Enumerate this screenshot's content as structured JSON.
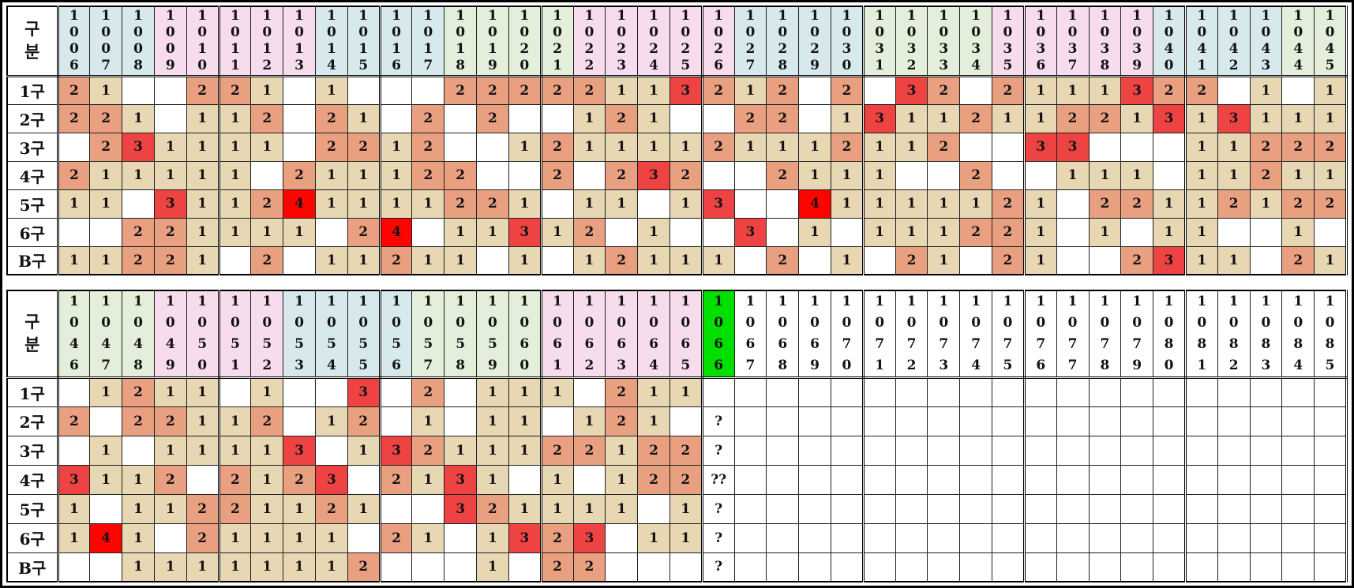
{
  "corner_label": "구분",
  "row_labels": [
    "1구",
    "2구",
    "3구",
    "4구",
    "5구",
    "6구",
    "B구"
  ],
  "colors": {
    "header_blue": "#d8e9ee",
    "header_pink": "#f6dcec",
    "header_green": "#e3efda",
    "header_highlight_green": "#00df00",
    "header_white": "#ffffff",
    "value_1_bg": "#e7d7b3",
    "value_2_bg": "#e9a080",
    "value_3_bg": "#ee4343",
    "value_4_bg": "#fe0400",
    "grid_line": "#000000"
  },
  "tables": [
    {
      "name": "rounds-1006-1045",
      "columns": [
        {
          "id": "1006",
          "color": "blue"
        },
        {
          "id": "1007",
          "color": "blue"
        },
        {
          "id": "1008",
          "color": "blue"
        },
        {
          "id": "1009",
          "color": "pink"
        },
        {
          "id": "1010",
          "color": "pink"
        },
        {
          "id": "1011",
          "color": "pink"
        },
        {
          "id": "1012",
          "color": "pink"
        },
        {
          "id": "1013",
          "color": "pink"
        },
        {
          "id": "1014",
          "color": "blue"
        },
        {
          "id": "1015",
          "color": "blue"
        },
        {
          "id": "1016",
          "color": "blue"
        },
        {
          "id": "1017",
          "color": "blue"
        },
        {
          "id": "1018",
          "color": "green"
        },
        {
          "id": "1019",
          "color": "green"
        },
        {
          "id": "1020",
          "color": "green"
        },
        {
          "id": "1021",
          "color": "green"
        },
        {
          "id": "1022",
          "color": "pink"
        },
        {
          "id": "1023",
          "color": "pink"
        },
        {
          "id": "1024",
          "color": "pink"
        },
        {
          "id": "1025",
          "color": "pink"
        },
        {
          "id": "1026",
          "color": "pink"
        },
        {
          "id": "1027",
          "color": "blue"
        },
        {
          "id": "1028",
          "color": "blue"
        },
        {
          "id": "1029",
          "color": "blue"
        },
        {
          "id": "1030",
          "color": "blue"
        },
        {
          "id": "1031",
          "color": "green"
        },
        {
          "id": "1032",
          "color": "green"
        },
        {
          "id": "1033",
          "color": "green"
        },
        {
          "id": "1034",
          "color": "green"
        },
        {
          "id": "1035",
          "color": "pink"
        },
        {
          "id": "1036",
          "color": "pink"
        },
        {
          "id": "1037",
          "color": "pink"
        },
        {
          "id": "1038",
          "color": "pink"
        },
        {
          "id": "1039",
          "color": "pink"
        },
        {
          "id": "1040",
          "color": "blue"
        },
        {
          "id": "1041",
          "color": "blue"
        },
        {
          "id": "1042",
          "color": "blue"
        },
        {
          "id": "1043",
          "color": "blue"
        },
        {
          "id": "1044",
          "color": "green"
        },
        {
          "id": "1045",
          "color": "green"
        }
      ],
      "rows": [
        {
          "label": "1구",
          "cells": [
            "2",
            "1",
            "",
            "",
            "2",
            "2",
            "1",
            "",
            "1",
            "",
            "",
            "",
            "2",
            "2",
            "2",
            "2",
            "2",
            "1",
            "1",
            "3",
            "2",
            "1",
            "2",
            "",
            "2",
            "",
            "3",
            "2",
            "",
            "2",
            "1",
            "1",
            "1",
            "3",
            "2",
            "2",
            "",
            "1",
            "",
            "1"
          ]
        },
        {
          "label": "2구",
          "cells": [
            "2",
            "2",
            "1",
            "",
            "1",
            "1",
            "2",
            "",
            "2",
            "1",
            "",
            "2",
            "",
            "2",
            "",
            "",
            "1",
            "2",
            "1",
            "",
            "",
            "2",
            "2",
            "",
            "1",
            "3",
            "1",
            "1",
            "2",
            "1",
            "1",
            "2",
            "2",
            "1",
            "3",
            "1",
            "3",
            "1",
            "1",
            "1"
          ]
        },
        {
          "label": "3구",
          "cells": [
            "",
            "2",
            "3",
            "1",
            "1",
            "1",
            "1",
            "",
            "2",
            "2",
            "1",
            "2",
            "",
            "",
            "1",
            "2",
            "1",
            "1",
            "1",
            "1",
            "2",
            "1",
            "1",
            "1",
            "2",
            "1",
            "1",
            "2",
            "",
            "",
            "3",
            "3",
            "",
            "",
            "",
            "1",
            "1",
            "2",
            "2",
            "2"
          ]
        },
        {
          "label": "4구",
          "cells": [
            "2",
            "1",
            "1",
            "1",
            "1",
            "1",
            "",
            "2",
            "1",
            "1",
            "1",
            "2",
            "2",
            "",
            "",
            "2",
            "",
            "2",
            "3",
            "2",
            "",
            "",
            "2",
            "1",
            "1",
            "1",
            "",
            "",
            "2",
            "",
            "",
            "1",
            "1",
            "1",
            "",
            "1",
            "1",
            "2",
            "1",
            "1"
          ]
        },
        {
          "label": "5구",
          "cells": [
            "1",
            "1",
            "",
            "3",
            "1",
            "1",
            "2",
            "4",
            "1",
            "1",
            "1",
            "1",
            "2",
            "2",
            "1",
            "",
            "1",
            "1",
            "",
            "1",
            "3",
            "",
            "",
            "4",
            "1",
            "1",
            "1",
            "1",
            "1",
            "2",
            "1",
            "",
            "2",
            "2",
            "1",
            "1",
            "2",
            "1",
            "2",
            "2"
          ]
        },
        {
          "label": "6구",
          "cells": [
            "",
            "",
            "2",
            "2",
            "1",
            "1",
            "1",
            "1",
            "",
            "2",
            "4",
            "",
            "1",
            "1",
            "3",
            "1",
            "2",
            "",
            "1",
            "",
            "",
            "3",
            "",
            "1",
            "",
            "1",
            "1",
            "1",
            "2",
            "2",
            "1",
            "",
            "1",
            "",
            "1",
            "1",
            "",
            "",
            "1",
            ""
          ]
        },
        {
          "label": "B구",
          "cells": [
            "1",
            "1",
            "2",
            "2",
            "1",
            "",
            "2",
            "",
            "1",
            "1",
            "2",
            "1",
            "1",
            "",
            "1",
            "",
            "1",
            "2",
            "1",
            "1",
            "1",
            "",
            "2",
            "",
            "1",
            "",
            "2",
            "1",
            "",
            "2",
            "1",
            "",
            "",
            "2",
            "3",
            "1",
            "1",
            "",
            "2",
            "1"
          ]
        }
      ]
    },
    {
      "name": "rounds-1046-1085",
      "columns": [
        {
          "id": "1046",
          "color": "green"
        },
        {
          "id": "1047",
          "color": "green"
        },
        {
          "id": "1048",
          "color": "green"
        },
        {
          "id": "1049",
          "color": "pink"
        },
        {
          "id": "1050",
          "color": "pink"
        },
        {
          "id": "1051",
          "color": "pink"
        },
        {
          "id": "1052",
          "color": "pink"
        },
        {
          "id": "1053",
          "color": "blue"
        },
        {
          "id": "1054",
          "color": "blue"
        },
        {
          "id": "1055",
          "color": "blue"
        },
        {
          "id": "1056",
          "color": "blue"
        },
        {
          "id": "1057",
          "color": "green"
        },
        {
          "id": "1058",
          "color": "green"
        },
        {
          "id": "1059",
          "color": "green"
        },
        {
          "id": "1060",
          "color": "green"
        },
        {
          "id": "1061",
          "color": "pink"
        },
        {
          "id": "1062",
          "color": "pink"
        },
        {
          "id": "1063",
          "color": "pink"
        },
        {
          "id": "1064",
          "color": "pink"
        },
        {
          "id": "1065",
          "color": "pink"
        },
        {
          "id": "1066",
          "color": "hl"
        },
        {
          "id": "1067",
          "color": "white"
        },
        {
          "id": "1068",
          "color": "white"
        },
        {
          "id": "1069",
          "color": "white"
        },
        {
          "id": "1070",
          "color": "white"
        },
        {
          "id": "1071",
          "color": "white"
        },
        {
          "id": "1072",
          "color": "white"
        },
        {
          "id": "1073",
          "color": "white"
        },
        {
          "id": "1074",
          "color": "white"
        },
        {
          "id": "1075",
          "color": "white"
        },
        {
          "id": "1076",
          "color": "white"
        },
        {
          "id": "1077",
          "color": "white"
        },
        {
          "id": "1078",
          "color": "white"
        },
        {
          "id": "1079",
          "color": "white"
        },
        {
          "id": "1080",
          "color": "white"
        },
        {
          "id": "1081",
          "color": "white"
        },
        {
          "id": "1082",
          "color": "white"
        },
        {
          "id": "1083",
          "color": "white"
        },
        {
          "id": "1084",
          "color": "white"
        },
        {
          "id": "1085",
          "color": "white"
        }
      ],
      "rows": [
        {
          "label": "1구",
          "cells": [
            "",
            "1",
            "2",
            "1",
            "1",
            "",
            "1",
            "",
            "",
            "3",
            "",
            "2",
            "",
            "1",
            "1",
            "1",
            "",
            "2",
            "1",
            "1",
            "",
            "",
            "",
            "",
            "",
            "",
            "",
            "",
            "",
            "",
            "",
            "",
            "",
            "",
            "",
            "",
            "",
            "",
            "",
            ""
          ]
        },
        {
          "label": "2구",
          "cells": [
            "2",
            "",
            "2",
            "2",
            "1",
            "1",
            "2",
            "",
            "1",
            "2",
            "",
            "1",
            "",
            "1",
            "1",
            "",
            "1",
            "2",
            "1",
            "",
            "?",
            "",
            "",
            "",
            "",
            "",
            "",
            "",
            "",
            "",
            "",
            "",
            "",
            "",
            "",
            "",
            "",
            "",
            "",
            ""
          ]
        },
        {
          "label": "3구",
          "cells": [
            "",
            "1",
            "",
            "1",
            "1",
            "1",
            "1",
            "3",
            "",
            "1",
            "3",
            "2",
            "1",
            "1",
            "1",
            "2",
            "2",
            "1",
            "2",
            "2",
            "?",
            "",
            "",
            "",
            "",
            "",
            "",
            "",
            "",
            "",
            "",
            "",
            "",
            "",
            "",
            "",
            "",
            "",
            "",
            ""
          ]
        },
        {
          "label": "4구",
          "cells": [
            "3",
            "1",
            "1",
            "2",
            "",
            "2",
            "1",
            "2",
            "3",
            "",
            "2",
            "1",
            "3",
            "1",
            "",
            "1",
            "",
            "1",
            "2",
            "2",
            "??",
            "",
            "",
            "",
            "",
            "",
            "",
            "",
            "",
            "",
            "",
            "",
            "",
            "",
            "",
            "",
            "",
            "",
            "",
            ""
          ]
        },
        {
          "label": "5구",
          "cells": [
            "1",
            "",
            "1",
            "1",
            "2",
            "2",
            "1",
            "1",
            "2",
            "1",
            "",
            "",
            "3",
            "2",
            "1",
            "1",
            "1",
            "1",
            "",
            "1",
            "?",
            "",
            "",
            "",
            "",
            "",
            "",
            "",
            "",
            "",
            "",
            "",
            "",
            "",
            "",
            "",
            "",
            "",
            "",
            ""
          ]
        },
        {
          "label": "6구",
          "cells": [
            "1",
            "4",
            "1",
            "",
            "2",
            "1",
            "1",
            "1",
            "1",
            "",
            "2",
            "1",
            "",
            "1",
            "3",
            "2",
            "3",
            "",
            "1",
            "1",
            "?",
            "",
            "",
            "",
            "",
            "",
            "",
            "",
            "",
            "",
            "",
            "",
            "",
            "",
            "",
            "",
            "",
            "",
            "",
            ""
          ]
        },
        {
          "label": "B구",
          "cells": [
            "",
            "",
            "1",
            "1",
            "1",
            "1",
            "1",
            "1",
            "1",
            "2",
            "",
            "",
            "",
            "1",
            "",
            "2",
            "2",
            "",
            "",
            "",
            "?",
            "",
            "",
            "",
            "",
            "",
            "",
            "",
            "",
            "",
            "",
            "",
            "",
            "",
            "",
            "",
            "",
            "",
            "",
            ""
          ]
        }
      ]
    }
  ]
}
